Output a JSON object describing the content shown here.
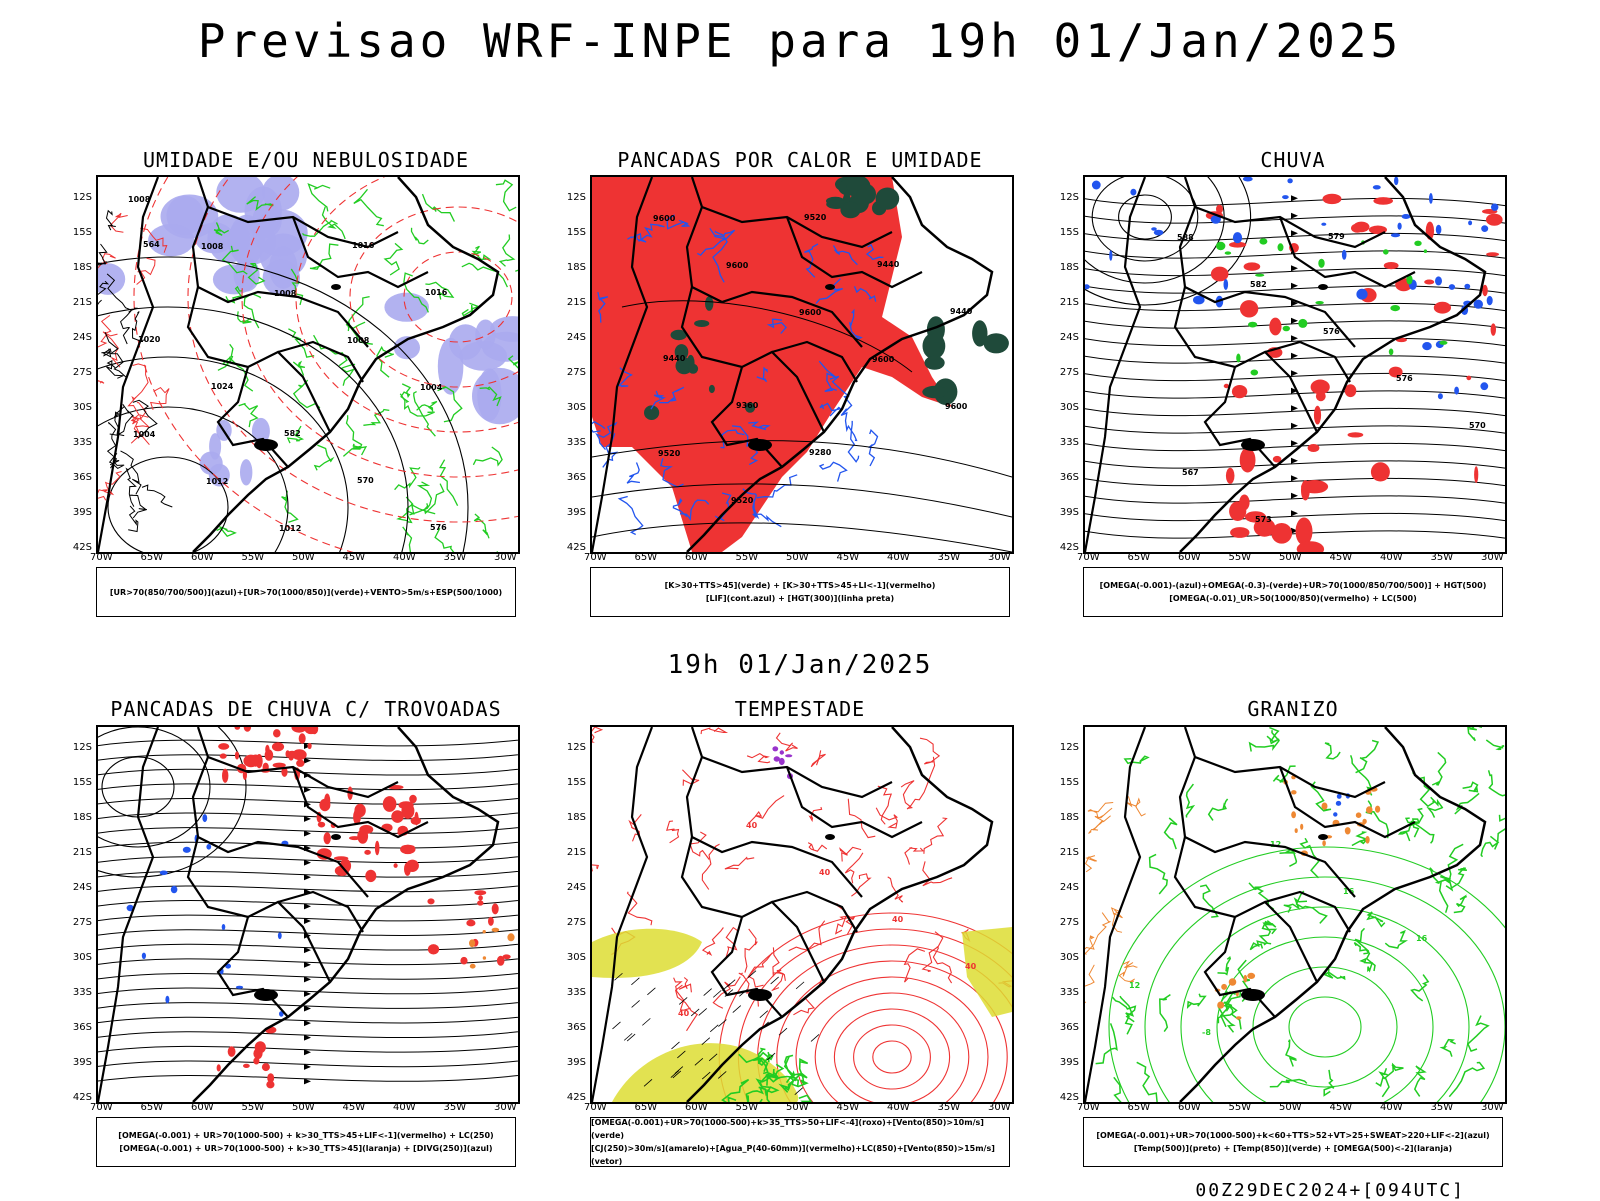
{
  "title": "Previsao WRF-INPE  para 19h 01/Jan/2025",
  "subtitle": "19h 01/Jan/2025",
  "footer": "00Z29DEC2024+[094UTC]",
  "lat_labels": [
    "12S",
    "15S",
    "18S",
    "21S",
    "24S",
    "27S",
    "30S",
    "33S",
    "36S",
    "39S",
    "42S"
  ],
  "lon_labels": [
    "70W",
    "65W",
    "60W",
    "55W",
    "50W",
    "45W",
    "40W",
    "35W",
    "30W"
  ],
  "colors": {
    "green": "#22cc22",
    "red": "#ee3333",
    "blue": "#2255ee",
    "lavender": "#aaaaee",
    "darkgreen": "#1f4a3a",
    "yellow": "#dddd33",
    "orange": "#ee8833",
    "purple": "#9933cc"
  },
  "panels": [
    {
      "title": "UMIDADE E/OU NEBULOSIDADE",
      "legend": [
        "[UR>70(850/700/500)](azul)+[UR>70(1000/850)](verde)+VENTO>5m/s+ESP(500/1000)"
      ],
      "contour_labels": [
        "1008",
        "1008",
        "1008",
        "1008",
        "1004",
        "1004",
        "1012",
        "1012",
        "1016",
        "1016",
        "1020",
        "1024",
        "582",
        "570",
        "576",
        "564"
      ]
    },
    {
      "title": "PANCADAS POR CALOR E UMIDADE",
      "legend": [
        "[K>30+TTS>45](verde) + [K>30+TTS>45+LI<-1](vermelho)",
        "[LIF](cont.azul) + [HGT(300)](linha preta)"
      ],
      "contour_labels": [
        "9600",
        "9600",
        "9600",
        "9600",
        "9600",
        "9520",
        "9520",
        "9520",
        "9440",
        "9440",
        "9440",
        "9360",
        "9280"
      ]
    },
    {
      "title": "CHUVA",
      "legend": [
        "[OMEGA(-0.001)-(azul)+OMEGA(-0.3)-(verde)+UR>70(1000/850/700/500)] + HGT(500)",
        "[OMEGA(-0.01)_UR>50(1000/850)(vermelho) + LC(500)"
      ],
      "contour_labels": [
        "588",
        "582",
        "576",
        "576",
        "570",
        "567",
        "573",
        "579"
      ]
    },
    {
      "title": "PANCADAS DE CHUVA C/ TROVOADAS",
      "legend": [
        "[OMEGA(-0.001) + UR>70(1000-500) + k>30_TTS>45+LIF<-1](vermelho) + LC(250)",
        "[OMEGA(-0.001) + UR>70(1000-500) + k>30_TTS>45](laranja) + [DIVG(250)](azul)"
      ],
      "contour_labels": []
    },
    {
      "title": "TEMPESTADE",
      "legend": [
        "[OMEGA(-0.001)+UR>70(1000-500)+k>35_TTS>50+LIF<-4](roxo)+[Vento(850)>10m/s](verde)",
        "[CJ(250)>30m/s](amarelo)+[Agua_P(40-60mm)](vermelho)+LC(850)+[Vento(850)>15m/s](vetor)"
      ],
      "contour_labels": [
        "40",
        "40",
        "40",
        "40",
        "40"
      ]
    },
    {
      "title": "GRANIZO",
      "legend": [
        "[OMEGA(-0.001)+UR>70(1000-500)+k<60+TTS>52+VT>25+SWEAT>220+LIF<-2](azul)",
        "[Temp(500)](preto) + [Temp(850)](verde) + [OMEGA(500)<-2](laranja)"
      ],
      "contour_labels": [
        "12",
        "16",
        "16",
        "12",
        "-8"
      ]
    }
  ]
}
